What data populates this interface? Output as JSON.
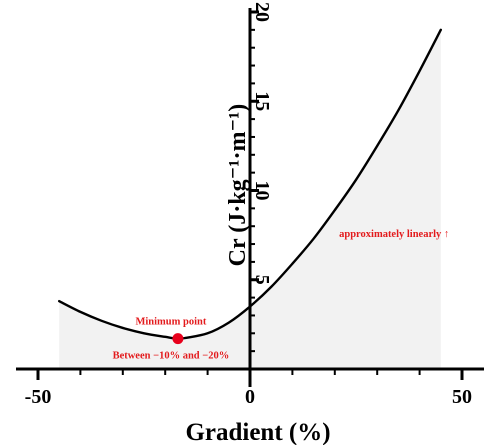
{
  "chart_data": {
    "type": "line",
    "x": [
      -45,
      -40,
      -35,
      -30,
      -25,
      -20,
      -17,
      -15,
      -10,
      -5,
      0,
      5,
      10,
      15,
      20,
      25,
      30,
      35,
      40,
      45
    ],
    "series": [
      {
        "values": [
          3.8,
          3.2,
          2.7,
          2.3,
          2.0,
          1.8,
          1.7,
          1.75,
          2.0,
          2.6,
          3.5,
          4.6,
          5.9,
          7.3,
          8.9,
          10.6,
          12.5,
          14.5,
          16.7,
          19.0
        ]
      }
    ],
    "xlabel": "Gradient (%)",
    "ylabel": "Cr (J·kg⁻¹·m⁻¹)",
    "xlim": [
      -50,
      50
    ],
    "ylim": [
      0,
      20
    ],
    "xticks": [
      "-50",
      "0",
      "50"
    ],
    "yticks": [
      "5",
      "10",
      "15",
      "20"
    ],
    "minor_xticks": [
      -40,
      -30,
      -20,
      -10,
      10,
      20,
      30,
      40
    ],
    "minor_yticks": [
      1,
      2,
      3,
      4,
      6,
      7,
      8,
      9,
      11,
      12,
      13,
      14,
      16,
      17,
      18,
      19
    ],
    "shaded_region": {
      "x_range": [
        -45,
        45
      ]
    },
    "grid": false,
    "minimum_point": {
      "x": -17,
      "y": 1.7,
      "label": "Minimum point",
      "note": "Between −10% and −20%"
    },
    "annotation": {
      "text": "approximately linearly ↑",
      "x": 34,
      "y": 7.4
    },
    "colors": {
      "curve": "#000000",
      "fill": "#f2f2f2",
      "annotation": "#e31a1c",
      "point": "#e8001c",
      "axis": "#000000"
    }
  }
}
